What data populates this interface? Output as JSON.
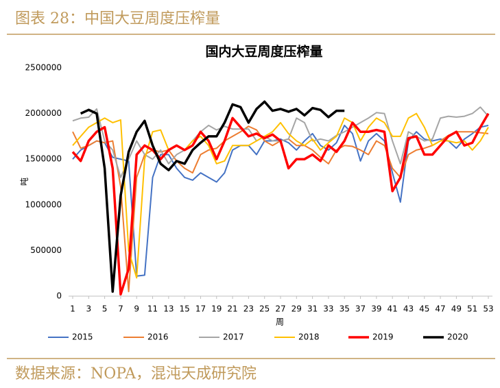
{
  "header": {
    "title": "图表 28：中国大豆周度压榨量"
  },
  "footer": {
    "source": "数据来源：NOPA，混沌天成研究院"
  },
  "chart_data": {
    "type": "line",
    "title": "国内大豆周度压榨量",
    "y_label": "吨",
    "x_label": "周",
    "x": [
      1,
      2,
      3,
      4,
      5,
      6,
      7,
      8,
      9,
      10,
      11,
      12,
      13,
      14,
      15,
      16,
      17,
      18,
      19,
      20,
      21,
      22,
      23,
      24,
      25,
      26,
      27,
      28,
      29,
      30,
      31,
      32,
      33,
      34,
      35,
      36,
      37,
      38,
      39,
      40,
      41,
      42,
      43,
      44,
      45,
      46,
      47,
      48,
      49,
      50,
      51,
      52,
      53
    ],
    "xlim": [
      1,
      53
    ],
    "xticks": [
      1,
      3,
      5,
      7,
      9,
      11,
      13,
      15,
      17,
      19,
      21,
      23,
      25,
      27,
      29,
      31,
      33,
      35,
      37,
      39,
      41,
      43,
      45,
      47,
      49,
      51,
      53
    ],
    "ylim": [
      0,
      2500000
    ],
    "yticks": [
      0,
      500000,
      1000000,
      1500000,
      2000000,
      2500000
    ],
    "grid": false,
    "legend": "bottom",
    "series": [
      {
        "name": "2015",
        "color": "#4472c4",
        "width": 2,
        "values": [
          1500000,
          1600000,
          1650000,
          1700000,
          1680000,
          1520000,
          1500000,
          1480000,
          220000,
          230000,
          1300000,
          1550000,
          1550000,
          1400000,
          1300000,
          1270000,
          1350000,
          1300000,
          1250000,
          1350000,
          1600000,
          1650000,
          1650000,
          1550000,
          1700000,
          1700000,
          1720000,
          1680000,
          1600000,
          1700000,
          1780000,
          1650000,
          1600000,
          1680000,
          1870000,
          1780000,
          1480000,
          1700000,
          1780000,
          1700000,
          1350000,
          1030000,
          1700000,
          1800000,
          1720000,
          1700000,
          1720000,
          1700000,
          1620000,
          1720000,
          1780000,
          1850000,
          1870000
        ]
      },
      {
        "name": "2016",
        "color": "#ed7d31",
        "width": 2,
        "values": [
          1800000,
          1620000,
          1650000,
          1700000,
          1680000,
          1700000,
          1200000,
          50000,
          1300000,
          1550000,
          1600000,
          1580000,
          1600000,
          1480000,
          1400000,
          1350000,
          1550000,
          1600000,
          1620000,
          1700000,
          1750000,
          1800000,
          1860000,
          1820000,
          1700000,
          1650000,
          1700000,
          1720000,
          1650000,
          1650000,
          1600000,
          1520000,
          1450000,
          1600000,
          1650000,
          1640000,
          1600000,
          1550000,
          1700000,
          1650000,
          1400000,
          1300000,
          1550000,
          1600000,
          1620000,
          1650000,
          1700000,
          1760000,
          1800000,
          1800000,
          1800000,
          1790000,
          1780000
        ]
      },
      {
        "name": "2017",
        "color": "#a5a5a5",
        "width": 2,
        "values": [
          1920000,
          1950000,
          1960000,
          2050000,
          1700000,
          1600000,
          1300000,
          1500000,
          1700000,
          1550000,
          1500000,
          1600000,
          1450000,
          1550000,
          1600000,
          1700000,
          1800000,
          1870000,
          1820000,
          1860000,
          1830000,
          1830000,
          1830000,
          1700000,
          1750000,
          1700000,
          1700000,
          1720000,
          1950000,
          1900000,
          1700000,
          1720000,
          1700000,
          1760000,
          1800000,
          1850000,
          1900000,
          1950000,
          2010000,
          2000000,
          1700000,
          1450000,
          1800000,
          1750000,
          1700000,
          1720000,
          1950000,
          1970000,
          1960000,
          1970000,
          2000000,
          2070000,
          1970000
        ]
      },
      {
        "name": "2018",
        "color": "#ffc000",
        "width": 2,
        "values": [
          1650000,
          1750000,
          1850000,
          1900000,
          1950000,
          1900000,
          1930000,
          500000,
          200000,
          1500000,
          1800000,
          1820000,
          1600000,
          1650000,
          1600000,
          1700000,
          1750000,
          1650000,
          1450000,
          1480000,
          1650000,
          1650000,
          1650000,
          1700000,
          1750000,
          1800000,
          1900000,
          1780000,
          1700000,
          1650000,
          1720000,
          1600000,
          1680000,
          1750000,
          1950000,
          1900000,
          1700000,
          1850000,
          1950000,
          1900000,
          1750000,
          1750000,
          1950000,
          2000000,
          1850000,
          1650000,
          1700000,
          1700000,
          1680000,
          1700000,
          1600000,
          1700000,
          1850000
        ]
      },
      {
        "name": "2019",
        "color": "#ff0000",
        "width": 3.5,
        "values": [
          1580000,
          1480000,
          1700000,
          1800000,
          1850000,
          1400000,
          20000,
          300000,
          1550000,
          1650000,
          1600000,
          1500000,
          1600000,
          1650000,
          1600000,
          1650000,
          1800000,
          1700000,
          1500000,
          1700000,
          1950000,
          1850000,
          1750000,
          1780000,
          1730000,
          1770000,
          1700000,
          1400000,
          1500000,
          1500000,
          1550000,
          1480000,
          1650000,
          1580000,
          1700000,
          1900000,
          1800000,
          1800000,
          1820000,
          1800000,
          1150000,
          1300000,
          1730000,
          1750000,
          1550000,
          1550000,
          1650000,
          1750000,
          1800000,
          1650000,
          1680000,
          1850000,
          2000000
        ]
      },
      {
        "name": "2020",
        "color": "#000000",
        "width": 3.5,
        "values": [
          null,
          2000000,
          2040000,
          2000000,
          1400000,
          50000,
          1100000,
          1580000,
          1800000,
          1920000,
          1650000,
          1450000,
          1380000,
          1480000,
          1450000,
          1600000,
          1680000,
          1750000,
          1750000,
          1900000,
          2100000,
          2070000,
          1900000,
          2050000,
          2130000,
          2030000,
          2050000,
          2020000,
          2050000,
          1980000,
          2060000,
          2040000,
          1960000,
          2030000,
          2030000,
          null,
          null,
          null,
          null,
          null,
          null,
          null,
          null,
          null,
          null,
          null,
          null,
          null,
          null,
          null,
          null,
          null,
          null
        ]
      }
    ]
  }
}
